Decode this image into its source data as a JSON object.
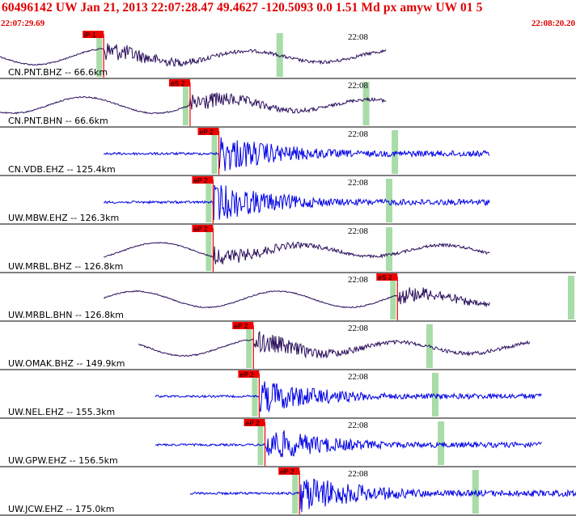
{
  "header": {
    "title": "60496142 UW Jan 21, 2013 22:07:28.47   49.4627 -120.5093  0.0 1.51 Md px amyw UW 01   5",
    "start_time": "22:07:29.69",
    "end_time": "22:08:20.20"
  },
  "colors": {
    "header_text": "#e00000",
    "trace_dark": "#2a0f5c",
    "trace_blue": "#0000e6",
    "pick_box": "#ee0000",
    "window_band": "#a8dca8"
  },
  "traces": [
    {
      "station": "CN.PNT.BHZ -- 66.6km",
      "time_mark": "22:08",
      "pick": "iP 1",
      "color": "dark",
      "start": 0,
      "end": 0.67,
      "onset": 0.18,
      "amp": 0.8,
      "hasS": true
    },
    {
      "station": "CN.PNT.BHN -- 66.6km",
      "time_mark": "22:08",
      "pick": "eS 2",
      "color": "dark",
      "start": 0,
      "end": 0.67,
      "onset": 0.33,
      "amp": 0.8,
      "hasS": true
    },
    {
      "station": "CN.VDB.EHZ -- 125.4km",
      "time_mark": "22:08",
      "pick": "eP 2",
      "color": "blue",
      "start": 0.18,
      "end": 0.85,
      "onset": 0.38,
      "amp": 0.9,
      "hasS": false
    },
    {
      "station": "UW.MBW.EHZ -- 126.3km",
      "time_mark": "22:08",
      "pick": "eP 2",
      "color": "blue",
      "start": 0.18,
      "end": 0.85,
      "onset": 0.37,
      "amp": 0.9,
      "hasS": false
    },
    {
      "station": "UW.MRBL.BHZ -- 126.8km",
      "time_mark": "22:08",
      "pick": "eP 2",
      "color": "dark",
      "start": 0.18,
      "end": 0.85,
      "onset": 0.37,
      "amp": 0.7,
      "hasS": false
    },
    {
      "station": "UW.MRBL.BHN -- 126.8km",
      "time_mark": "22:08",
      "pick": "eS 2",
      "color": "dark",
      "start": 0.18,
      "end": 0.85,
      "onset": 0.69,
      "amp": 0.7,
      "hasS": false
    },
    {
      "station": "UW.OMAK.BHZ -- 149.9km",
      "time_mark": "22:08",
      "pick": "eP 2",
      "color": "dark",
      "start": 0.24,
      "end": 0.92,
      "onset": 0.44,
      "amp": 0.9,
      "hasS": false
    },
    {
      "station": "UW.NEL.EHZ -- 155.3km",
      "time_mark": "22:08",
      "pick": "eP 2",
      "color": "blue",
      "start": 0.27,
      "end": 0.94,
      "onset": 0.45,
      "amp": 0.8,
      "hasS": false
    },
    {
      "station": "UW.GPW.EHZ -- 156.5km",
      "time_mark": "22:08",
      "pick": "eP 2",
      "color": "blue",
      "start": 0.27,
      "end": 0.94,
      "onset": 0.46,
      "amp": 0.8,
      "hasS": false
    },
    {
      "station": "UW.JCW.EHZ -- 175.0km",
      "time_mark": "22:08",
      "pick": "eP 2",
      "color": "blue",
      "start": 0.33,
      "end": 1.0,
      "onset": 0.52,
      "amp": 0.9,
      "hasS": false
    }
  ]
}
